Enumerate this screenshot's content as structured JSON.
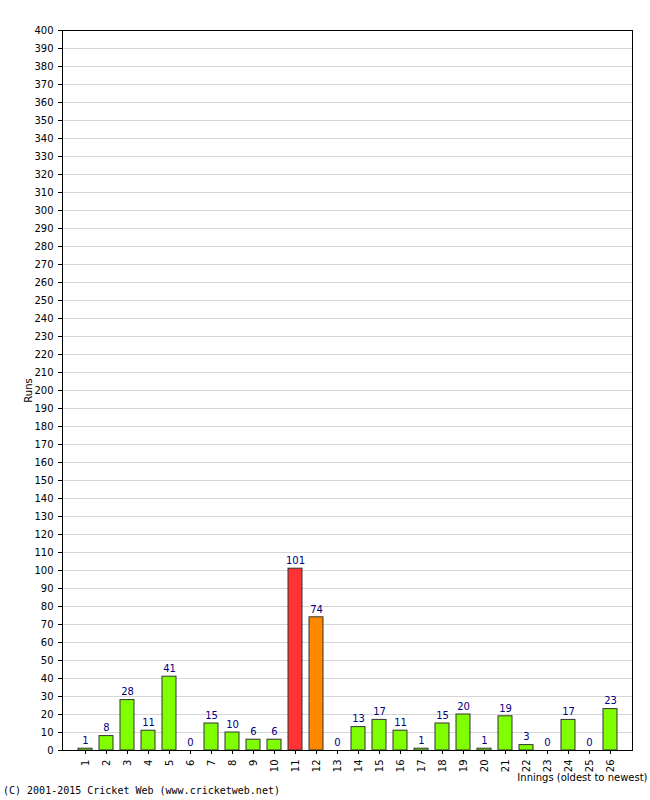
{
  "chart_data": {
    "type": "bar",
    "x_label": "Innings (oldest to newest)",
    "y_label": "Runs",
    "caption": "(C) 2001-2015 Cricket Web (www.cricketweb.net)",
    "categories": [
      "1",
      "2",
      "3",
      "4",
      "5",
      "6",
      "7",
      "8",
      "9",
      "10",
      "11",
      "12",
      "13",
      "14",
      "15",
      "16",
      "17",
      "18",
      "19",
      "20",
      "21",
      "22",
      "23",
      "24",
      "25",
      "26"
    ],
    "values": [
      1,
      8,
      28,
      11,
      41,
      0,
      15,
      10,
      6,
      6,
      101,
      74,
      0,
      13,
      17,
      11,
      1,
      15,
      20,
      1,
      19,
      3,
      0,
      17,
      0,
      23
    ],
    "colors": [
      "#80ff00",
      "#80ff00",
      "#80ff00",
      "#80ff00",
      "#80ff00",
      "#80ff00",
      "#80ff00",
      "#80ff00",
      "#80ff00",
      "#80ff00",
      "#ff3333",
      "#ff8800",
      "#80ff00",
      "#80ff00",
      "#80ff00",
      "#80ff00",
      "#80ff00",
      "#80ff00",
      "#80ff00",
      "#80ff00",
      "#80ff00",
      "#80ff00",
      "#80ff00",
      "#80ff00",
      "#80ff00",
      "#80ff00"
    ],
    "ylim": [
      0,
      400
    ],
    "yticks": [
      0,
      10,
      20,
      30,
      40,
      50,
      60,
      70,
      80,
      90,
      100,
      110,
      120,
      130,
      140,
      150,
      160,
      170,
      180,
      190,
      200,
      210,
      220,
      230,
      240,
      250,
      260,
      270,
      280,
      290,
      300,
      310,
      320,
      330,
      340,
      350,
      360,
      370,
      380,
      390,
      400
    ],
    "grid": true,
    "data_labels": true
  }
}
